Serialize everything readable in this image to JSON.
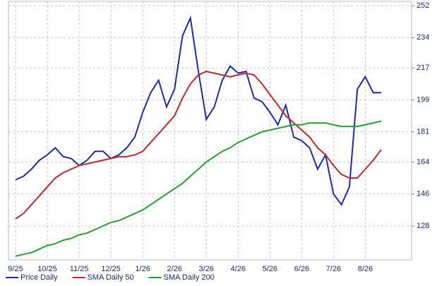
{
  "chart_data": {
    "type": "line",
    "categories": [
      "9/25",
      null,
      null,
      null,
      "10/25",
      null,
      null,
      null,
      "11/25",
      null,
      null,
      null,
      "12/25",
      null,
      null,
      null,
      "1/26",
      null,
      null,
      null,
      "2/26",
      null,
      null,
      null,
      "3/26",
      null,
      null,
      null,
      "4/26",
      null,
      null,
      null,
      "5/26",
      null,
      null,
      null,
      "6/26",
      null,
      null,
      null,
      "7/26",
      null,
      null,
      null,
      "8/26",
      null,
      null
    ],
    "series": [
      {
        "name": "Price Daily",
        "color": "#1c2bb0",
        "values": [
          154,
          156,
          160,
          165,
          168,
          172,
          167,
          166,
          162,
          165,
          170,
          170,
          166,
          168,
          172,
          178,
          192,
          203,
          210,
          195,
          205,
          235,
          245,
          215,
          188,
          195,
          210,
          218,
          214,
          215,
          200,
          198,
          192,
          185,
          196,
          178,
          176,
          172,
          160,
          168,
          146,
          140,
          150,
          205,
          212,
          203,
          203
        ]
      },
      {
        "name": "SMA Daily 50",
        "color": "#c3282d",
        "values": [
          132,
          135,
          140,
          145,
          150,
          155,
          158,
          160,
          162,
          163,
          164,
          165,
          166,
          167,
          167,
          168,
          170,
          175,
          180,
          185,
          190,
          200,
          208,
          213,
          215,
          214,
          213,
          212,
          213,
          214,
          213,
          208,
          202,
          196,
          190,
          186,
          182,
          178,
          172,
          168,
          162,
          157,
          155,
          155,
          160,
          165,
          171
        ]
      },
      {
        "name": "SMA Daily 200",
        "color": "#25a22c",
        "values": [
          111,
          112,
          113,
          115,
          117,
          118,
          120,
          121,
          123,
          124,
          126,
          128,
          130,
          131,
          133,
          135,
          137,
          140,
          143,
          146,
          149,
          152,
          156,
          160,
          164,
          167,
          170,
          172,
          175,
          177,
          179,
          181,
          182,
          183,
          184,
          185,
          185,
          186,
          186,
          186,
          185,
          184,
          184,
          184,
          185,
          186,
          187
        ]
      }
    ],
    "ylim": [
      108.9,
      254.4
    ],
    "yticks": [
      128,
      146,
      164,
      181,
      199,
      217,
      234,
      252
    ],
    "grid": true
  }
}
